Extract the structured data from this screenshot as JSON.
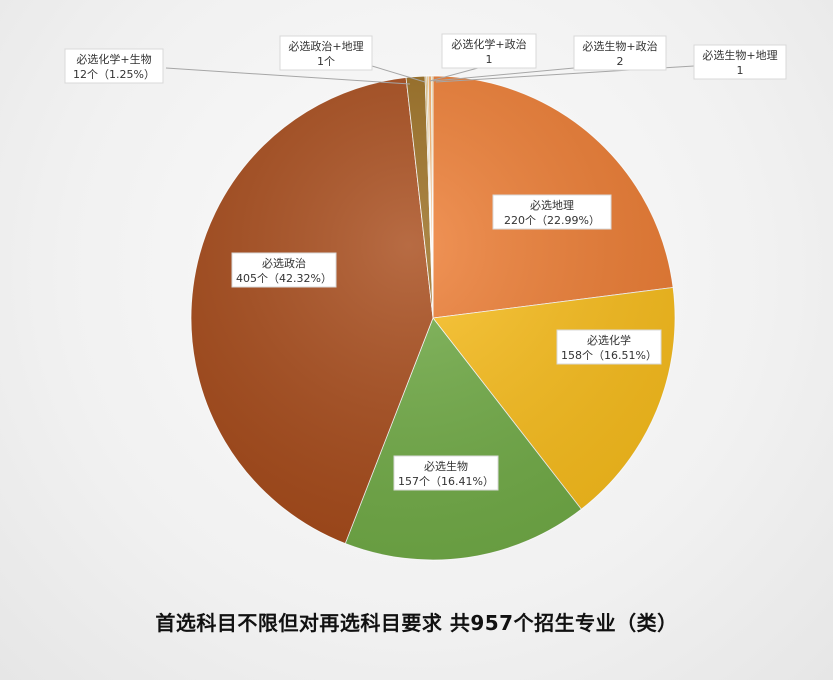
{
  "chart_data": {
    "type": "pie",
    "title": "首选科目不限但对再选科目要求 共957个招生专业（类）",
    "slices": [
      {
        "name": "必选地理",
        "value": 220,
        "label": "220个（22.99%）",
        "color": "#ee7d33"
      },
      {
        "name": "必选化学",
        "value": 158,
        "label": "158个（16.51%）",
        "color": "#fbbf1c"
      },
      {
        "name": "必选生物",
        "value": 157,
        "label": "157个（16.41%）",
        "color": "#72ad47"
      },
      {
        "name": "必选政治",
        "value": 405,
        "label": "405个（42.32%）",
        "color": "#a84b1a"
      },
      {
        "name": "必选化学+生物",
        "value": 12,
        "label": "12个（1.25%）",
        "color": "#9a6d1f"
      },
      {
        "name": "必选政治+地理",
        "value": 1,
        "label": "1个",
        "color": "#c9a04a"
      },
      {
        "name": "必选化学+政治",
        "value": 1,
        "label": "1",
        "color": "#f4c36b"
      },
      {
        "name": "必选生物+政治",
        "value": 2,
        "label": "2",
        "color": "#f6b26b"
      },
      {
        "name": "必选生物+地理",
        "value": 1,
        "label": "1",
        "color": "#f9d78c"
      }
    ]
  }
}
